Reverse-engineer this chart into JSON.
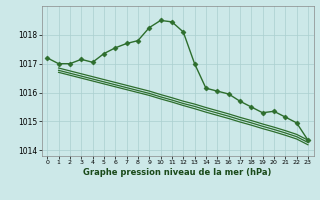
{
  "xlabel": "Graphe pression niveau de la mer (hPa)",
  "background_color": "#cce8e8",
  "grid_color": "#aacfcf",
  "line_color": "#2d6e2d",
  "ylim": [
    1013.8,
    1019.0
  ],
  "xlim": [
    -0.5,
    23.5
  ],
  "yticks": [
    1014,
    1015,
    1016,
    1017,
    1018
  ],
  "xticks": [
    0,
    1,
    2,
    3,
    4,
    5,
    6,
    7,
    8,
    9,
    10,
    11,
    12,
    13,
    14,
    15,
    16,
    17,
    18,
    19,
    20,
    21,
    22,
    23
  ],
  "series": [
    {
      "x": [
        0,
        1,
        2,
        3,
        4,
        5,
        6,
        7,
        8,
        9,
        10,
        11,
        12,
        13,
        14,
        15,
        16,
        17,
        18,
        19,
        20,
        21,
        22,
        23
      ],
      "y": [
        1017.2,
        1017.0,
        1017.0,
        1017.15,
        1017.05,
        1017.35,
        1017.55,
        1017.7,
        1017.8,
        1018.25,
        1018.5,
        1018.45,
        1018.1,
        1017.0,
        1016.15,
        1016.05,
        1015.95,
        1015.7,
        1015.5,
        1015.3,
        1015.35,
        1015.15,
        1014.95,
        1014.35
      ],
      "marker": "D",
      "markersize": 2.5,
      "lw": 1.0
    },
    {
      "x": [
        1,
        2,
        3,
        4,
        5,
        6,
        7,
        8,
        9,
        10,
        11,
        12,
        13,
        14,
        15,
        16,
        17,
        18,
        19,
        20,
        21,
        22,
        23
      ],
      "y": [
        1016.85,
        1016.75,
        1016.65,
        1016.55,
        1016.45,
        1016.35,
        1016.25,
        1016.15,
        1016.05,
        1015.93,
        1015.82,
        1015.7,
        1015.6,
        1015.48,
        1015.37,
        1015.26,
        1015.14,
        1015.03,
        1014.91,
        1014.8,
        1014.68,
        1014.55,
        1014.35
      ],
      "marker": null,
      "lw": 0.9
    },
    {
      "x": [
        1,
        2,
        3,
        4,
        5,
        6,
        7,
        8,
        9,
        10,
        11,
        12,
        13,
        14,
        15,
        16,
        17,
        18,
        19,
        20,
        21,
        22,
        23
      ],
      "y": [
        1016.77,
        1016.67,
        1016.57,
        1016.47,
        1016.37,
        1016.27,
        1016.17,
        1016.07,
        1015.97,
        1015.85,
        1015.74,
        1015.62,
        1015.52,
        1015.4,
        1015.29,
        1015.18,
        1015.06,
        1014.95,
        1014.83,
        1014.72,
        1014.6,
        1014.47,
        1014.27
      ],
      "marker": null,
      "lw": 0.9
    },
    {
      "x": [
        1,
        2,
        3,
        4,
        5,
        6,
        7,
        8,
        9,
        10,
        11,
        12,
        13,
        14,
        15,
        16,
        17,
        18,
        19,
        20,
        21,
        22,
        23
      ],
      "y": [
        1016.7,
        1016.6,
        1016.5,
        1016.4,
        1016.3,
        1016.2,
        1016.1,
        1016.0,
        1015.9,
        1015.78,
        1015.67,
        1015.55,
        1015.44,
        1015.32,
        1015.21,
        1015.1,
        1014.98,
        1014.87,
        1014.75,
        1014.64,
        1014.52,
        1014.39,
        1014.19
      ],
      "marker": null,
      "lw": 0.9
    }
  ]
}
